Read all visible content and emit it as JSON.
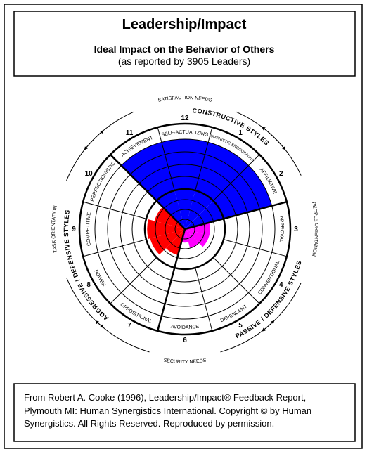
{
  "chart_data": {
    "type": "circumplex",
    "title": "Leadership/Impact",
    "subtitle": "Ideal Impact on the Behavior of Others",
    "subtitle_2": "(as reported by 3905 Leaders)",
    "categories": [
      "SELF-ACTUALIZING",
      "HUMANISTIC-ENCOURAGING",
      "AFFILIATIVE",
      "APPROVAL",
      "CONVENTIONAL",
      "DEPENDENT",
      "AVOIDANCE",
      "OPPOSITIONAL",
      "POWER",
      "COMPETITIVE",
      "PERFECTIONISTIC",
      "ACHIEVEMENT"
    ],
    "segment_numbers": [
      12,
      1,
      2,
      3,
      4,
      5,
      6,
      7,
      8,
      9,
      10,
      11
    ],
    "values": [
      100,
      100,
      100,
      28,
      28,
      22,
      15,
      30,
      40,
      42,
      35,
      100
    ],
    "colors": [
      "#0000ff",
      "#0000ff",
      "#0000ff",
      "#ff00ff",
      "#ff00ff",
      "#ff00ff",
      "#ff00ff",
      "#ff0000",
      "#ff0000",
      "#ff0000",
      "#ff0000",
      "#0000ff"
    ],
    "annotations": [
      "SATISFACTION NEEDS",
      "CONSTRUCTIVE STYLES",
      "PEOPLE ORIENTATION",
      "PASSIVE / DEFENSIVE STYLES",
      "SECURITY NEEDS",
      "AGGRESSIVE / DEFENSIVE STYLES",
      "TASK ORIENTATION"
    ]
  },
  "source": [
    "From Robert A. Cooke (1996), Leadership/Impact® Feedback Report,",
    "Plymouth MI: Human Synergistics International.  Copyright © by Human",
    "Synergistics.  All Rights Reserved.   Reproduced by permission."
  ]
}
